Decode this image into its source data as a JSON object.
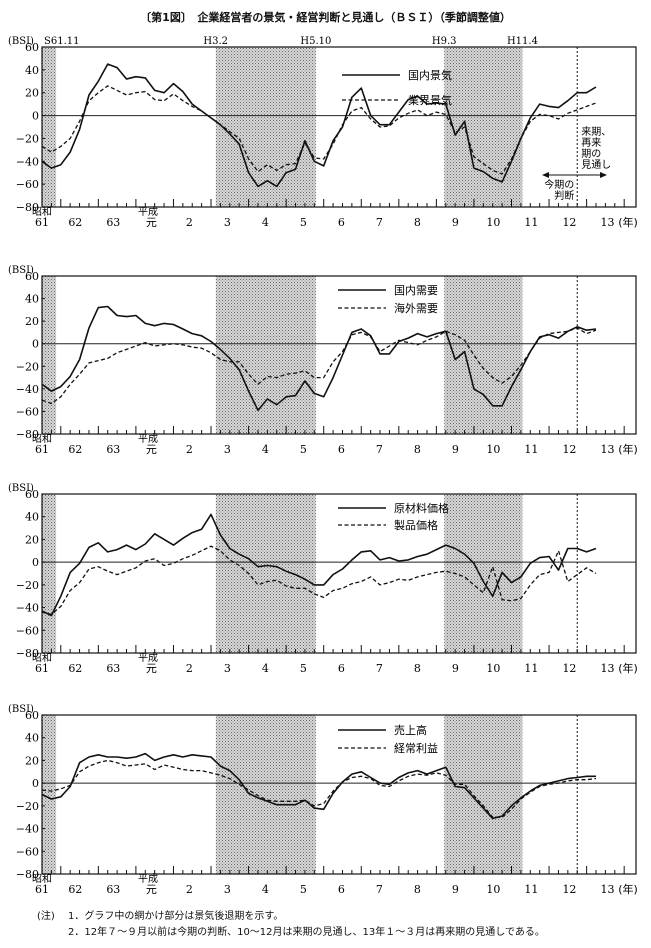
{
  "figure": {
    "title": "〔第1図〕　企業経営者の景気・経営判断と見通し（ＢＳＩ）（季節調整値）",
    "recessions": [
      {
        "from": null,
        "to": "S61.11"
      },
      {
        "from": "H3.2",
        "to": "H5.10"
      },
      {
        "from": "H9.3",
        "to": "H11.4"
      }
    ],
    "recession_labels": [
      "S61.11",
      "H3.2",
      "H5.10",
      "H9.3",
      "H11.4"
    ],
    "forecast_divider_at": "H12Q3",
    "annotations": {
      "outlook": [
        "来期、",
        "再来",
        "期の",
        "見通し"
      ],
      "current": [
        "今期の",
        "判断"
      ]
    },
    "notes": {
      "prefix": "(注)",
      "items": [
        "1．グラフ中の網かけ部分は景気後退期を示す。",
        "2．12年７～９月以前は今期の判断、10～12月は来期の見通し、13年１～３月は再来期の見通しである。"
      ]
    },
    "colors": {
      "line": "#111111",
      "shade": "#bdbdbd"
    }
  },
  "chart_data": [
    {
      "type": "line",
      "ylabel": "(BSI)",
      "ylim": [
        -80,
        60
      ],
      "yticks": [
        "60",
        "40",
        "20",
        "0",
        "−20",
        "−40",
        "−60",
        "−80"
      ],
      "era_labels": [
        "昭和",
        "平成"
      ],
      "xtick_labels": [
        "61",
        "62",
        "63",
        "元",
        "2",
        "3",
        "4",
        "5",
        "6",
        "7",
        "8",
        "9",
        "10",
        "11",
        "12",
        "13"
      ],
      "xunit": "(年)",
      "x": [
        "S61Q2",
        "S61Q3",
        "S61Q4",
        "S62Q1",
        "S62Q2",
        "S62Q3",
        "S62Q4",
        "S63Q1",
        "S63Q2",
        "S63Q3",
        "S63Q4",
        "H1Q1",
        "H1Q2",
        "H1Q3",
        "H1Q4",
        "H2Q1",
        "H2Q2",
        "H2Q3",
        "H2Q4",
        "H3Q1",
        "H3Q2",
        "H3Q3",
        "H3Q4",
        "H4Q1",
        "H4Q2",
        "H4Q3",
        "H4Q4",
        "H5Q1",
        "H5Q2",
        "H5Q3",
        "H5Q4",
        "H6Q1",
        "H6Q2",
        "H6Q3",
        "H6Q4",
        "H7Q1",
        "H7Q2",
        "H7Q3",
        "H7Q4",
        "H8Q1",
        "H8Q2",
        "H8Q3",
        "H8Q4",
        "H9Q1",
        "H9Q2",
        "H9Q3",
        "H9Q4",
        "H10Q1",
        "H10Q2",
        "H10Q3",
        "H10Q4",
        "H11Q1",
        "H11Q2",
        "H11Q3",
        "H11Q4",
        "H12Q1",
        "H12Q2",
        "H12Q3",
        "H12Q4",
        "H13Q1"
      ],
      "series": [
        {
          "name": "国内景気",
          "style": "solid",
          "values": [
            -40,
            -46,
            -43,
            -32,
            -12,
            18,
            30,
            45,
            42,
            32,
            34,
            33,
            22,
            20,
            28,
            21,
            10,
            4,
            -2,
            -8,
            -16,
            -25,
            -50,
            -62,
            -57,
            -62,
            -50,
            -47,
            -22,
            -40,
            -44,
            -22,
            -10,
            16,
            24,
            0,
            -8,
            -8,
            3,
            14,
            17,
            10,
            11,
            10,
            -17,
            -5,
            -46,
            -49,
            -55,
            -58,
            -40,
            -20,
            -2,
            10,
            8,
            7,
            13,
            20,
            20,
            25
          ]
        },
        {
          "name": "業界景気",
          "style": "dashed",
          "values": [
            -27,
            -32,
            -27,
            -20,
            -5,
            13,
            20,
            26,
            22,
            18,
            20,
            21,
            14,
            13,
            19,
            13,
            8,
            4,
            -2,
            -8,
            -14,
            -20,
            -38,
            -49,
            -43,
            -48,
            -43,
            -42,
            -24,
            -37,
            -38,
            -25,
            -8,
            4,
            7,
            -3,
            -10,
            -9,
            -2,
            2,
            5,
            0,
            3,
            1,
            -15,
            -10,
            -36,
            -42,
            -48,
            -51,
            -38,
            -20,
            -5,
            1,
            0,
            -3,
            2,
            5,
            8,
            11
          ]
        }
      ]
    },
    {
      "type": "line",
      "ylabel": "(BSI)",
      "ylim": [
        -80,
        60
      ],
      "yticks": [
        "60",
        "40",
        "20",
        "0",
        "−20",
        "−40",
        "−60",
        "−80"
      ],
      "era_labels": [
        "昭和",
        "平成"
      ],
      "xtick_labels": [
        "61",
        "62",
        "63",
        "元",
        "2",
        "3",
        "4",
        "5",
        "6",
        "7",
        "8",
        "9",
        "10",
        "11",
        "12",
        "13"
      ],
      "xunit": "(年)",
      "x": [
        "S61Q2",
        "S61Q3",
        "S61Q4",
        "S62Q1",
        "S62Q2",
        "S62Q3",
        "S62Q4",
        "S63Q1",
        "S63Q2",
        "S63Q3",
        "S63Q4",
        "H1Q1",
        "H1Q2",
        "H1Q3",
        "H1Q4",
        "H2Q1",
        "H2Q2",
        "H2Q3",
        "H2Q4",
        "H3Q1",
        "H3Q2",
        "H3Q3",
        "H3Q4",
        "H4Q1",
        "H4Q2",
        "H4Q3",
        "H4Q4",
        "H5Q1",
        "H5Q2",
        "H5Q3",
        "H5Q4",
        "H6Q1",
        "H6Q2",
        "H6Q3",
        "H6Q4",
        "H7Q1",
        "H7Q2",
        "H7Q3",
        "H7Q4",
        "H8Q1",
        "H8Q2",
        "H8Q3",
        "H8Q4",
        "H9Q1",
        "H9Q2",
        "H9Q3",
        "H9Q4",
        "H10Q1",
        "H10Q2",
        "H10Q3",
        "H10Q4",
        "H11Q1",
        "H11Q2",
        "H11Q3",
        "H11Q4",
        "H12Q1",
        "H12Q2",
        "H12Q3",
        "H12Q4",
        "H13Q1"
      ],
      "series": [
        {
          "name": "国内需要",
          "style": "solid",
          "values": [
            -36,
            -42,
            -38,
            -29,
            -14,
            14,
            32,
            33,
            25,
            24,
            25,
            18,
            16,
            18,
            17,
            13,
            9,
            7,
            2,
            -5,
            -13,
            -23,
            -42,
            -59,
            -49,
            -54,
            -47,
            -46,
            -33,
            -44,
            -47,
            -30,
            -10,
            10,
            13,
            7,
            -9,
            -9,
            2,
            5,
            9,
            6,
            9,
            11,
            -14,
            -7,
            -40,
            -45,
            -55,
            -55,
            -38,
            -23,
            -7,
            6,
            8,
            5,
            11,
            15,
            12,
            13
          ]
        },
        {
          "name": "海外需要",
          "style": "dashed",
          "values": [
            -50,
            -53,
            -47,
            -36,
            -27,
            -17,
            -15,
            -13,
            -8,
            -5,
            -2,
            1,
            -2,
            -1,
            0,
            -1,
            -3,
            -4,
            -8,
            -14,
            -16,
            -16,
            -27,
            -36,
            -29,
            -30,
            -27,
            -26,
            -24,
            -30,
            -30,
            -16,
            -7,
            8,
            10,
            6,
            -7,
            -2,
            3,
            1,
            -1,
            3,
            6,
            11,
            8,
            3,
            -10,
            -22,
            -30,
            -35,
            -29,
            -19,
            -7,
            5,
            9,
            10,
            11,
            14,
            9,
            12
          ]
        }
      ]
    },
    {
      "type": "line",
      "ylabel": "(BSI)",
      "ylim": [
        -80,
        60
      ],
      "yticks": [
        "60",
        "40",
        "20",
        "0",
        "−20",
        "−40",
        "−60",
        "−80"
      ],
      "era_labels": [
        "昭和",
        "平成"
      ],
      "xtick_labels": [
        "61",
        "62",
        "63",
        "元",
        "2",
        "3",
        "4",
        "5",
        "6",
        "7",
        "8",
        "9",
        "10",
        "11",
        "12",
        "13"
      ],
      "xunit": "(年)",
      "x": [
        "S61Q2",
        "S61Q3",
        "S61Q4",
        "S62Q1",
        "S62Q2",
        "S62Q3",
        "S62Q4",
        "S63Q1",
        "S63Q2",
        "S63Q3",
        "S63Q4",
        "H1Q1",
        "H1Q2",
        "H1Q3",
        "H1Q4",
        "H2Q1",
        "H2Q2",
        "H2Q3",
        "H2Q4",
        "H3Q1",
        "H3Q2",
        "H3Q3",
        "H3Q4",
        "H4Q1",
        "H4Q2",
        "H4Q3",
        "H4Q4",
        "H5Q1",
        "H5Q2",
        "H5Q3",
        "H5Q4",
        "H6Q1",
        "H6Q2",
        "H6Q3",
        "H6Q4",
        "H7Q1",
        "H7Q2",
        "H7Q3",
        "H7Q4",
        "H8Q1",
        "H8Q2",
        "H8Q3",
        "H8Q4",
        "H9Q1",
        "H9Q2",
        "H9Q3",
        "H9Q4",
        "H10Q1",
        "H10Q2",
        "H10Q3",
        "H10Q4",
        "H11Q1",
        "H11Q2",
        "H11Q3",
        "H11Q4",
        "H12Q1",
        "H12Q2",
        "H12Q3",
        "H12Q4",
        "H13Q1"
      ],
      "series": [
        {
          "name": "原材料価格",
          "style": "solid",
          "values": [
            -43,
            -47,
            -30,
            -9,
            -1,
            13,
            17,
            9,
            11,
            15,
            11,
            16,
            25,
            20,
            15,
            21,
            26,
            29,
            42,
            24,
            12,
            7,
            3,
            -4,
            -3,
            -4,
            -8,
            -11,
            -15,
            -20,
            -20,
            -11,
            -6,
            2,
            9,
            10,
            2,
            4,
            1,
            2,
            5,
            7,
            11,
            15,
            12,
            7,
            -1,
            -17,
            -30,
            -9,
            -18,
            -13,
            -1,
            4,
            5,
            -7,
            12,
            12,
            9,
            12
          ]
        },
        {
          "name": "製品価格",
          "style": "dashed",
          "values": [
            -44,
            -46,
            -39,
            -25,
            -18,
            -6,
            -4,
            -8,
            -11,
            -8,
            -5,
            1,
            3,
            -3,
            -1,
            3,
            6,
            10,
            14,
            10,
            2,
            -3,
            -10,
            -20,
            -17,
            -16,
            -21,
            -23,
            -23,
            -28,
            -31,
            -25,
            -23,
            -19,
            -17,
            -13,
            -20,
            -18,
            -15,
            -16,
            -13,
            -11,
            -9,
            -8,
            -10,
            -13,
            -20,
            -27,
            -4,
            -33,
            -34,
            -32,
            -20,
            -11,
            -9,
            10,
            -17,
            -11,
            -5,
            -10
          ]
        }
      ]
    },
    {
      "type": "line",
      "ylabel": "(BSI)",
      "ylim": [
        -80,
        60
      ],
      "yticks": [
        "60",
        "40",
        "20",
        "0",
        "−20",
        "−40",
        "−60",
        "−80"
      ],
      "era_labels": [
        "昭和",
        "平成"
      ],
      "xtick_labels": [
        "61",
        "62",
        "63",
        "元",
        "2",
        "3",
        "4",
        "5",
        "6",
        "7",
        "8",
        "9",
        "10",
        "11",
        "12",
        "13"
      ],
      "xunit": "(年)",
      "x": [
        "S61Q2",
        "S61Q3",
        "S61Q4",
        "S62Q1",
        "S62Q2",
        "S62Q3",
        "S62Q4",
        "S63Q1",
        "S63Q2",
        "S63Q3",
        "S63Q4",
        "H1Q1",
        "H1Q2",
        "H1Q3",
        "H1Q4",
        "H2Q1",
        "H2Q2",
        "H2Q3",
        "H2Q4",
        "H3Q1",
        "H3Q2",
        "H3Q3",
        "H3Q4",
        "H4Q1",
        "H4Q2",
        "H4Q3",
        "H4Q4",
        "H5Q1",
        "H5Q2",
        "H5Q3",
        "H5Q4",
        "H6Q1",
        "H6Q2",
        "H6Q3",
        "H6Q4",
        "H7Q1",
        "H7Q2",
        "H7Q3",
        "H7Q4",
        "H8Q1",
        "H8Q2",
        "H8Q3",
        "H8Q4",
        "H9Q1",
        "H9Q2",
        "H9Q3",
        "H9Q4",
        "H10Q1",
        "H10Q2",
        "H10Q3",
        "H10Q4",
        "H11Q1",
        "H11Q2",
        "H11Q3",
        "H11Q4",
        "H12Q1",
        "H12Q2",
        "H12Q3",
        "H12Q4",
        "H13Q1"
      ],
      "series": [
        {
          "name": "売上高",
          "style": "solid",
          "values": [
            -10,
            -14,
            -12,
            -3,
            18,
            23,
            25,
            23,
            23,
            22,
            23,
            26,
            20,
            23,
            25,
            23,
            25,
            24,
            23,
            15,
            11,
            3,
            -9,
            -13,
            -16,
            -19,
            -19,
            -19,
            -15,
            -22,
            -23,
            -9,
            1,
            8,
            10,
            5,
            0,
            -1,
            5,
            9,
            11,
            8,
            11,
            14,
            -3,
            -4,
            -13,
            -22,
            -31,
            -29,
            -20,
            -13,
            -7,
            -2,
            0,
            2,
            4,
            5,
            6,
            6
          ]
        },
        {
          "name": "経常利益",
          "style": "dashed",
          "values": [
            -6,
            -7,
            -5,
            -2,
            10,
            15,
            18,
            20,
            18,
            15,
            16,
            17,
            12,
            16,
            14,
            12,
            11,
            11,
            9,
            7,
            4,
            -1,
            -6,
            -11,
            -15,
            -16,
            -16,
            -16,
            -15,
            -20,
            -18,
            -7,
            1,
            5,
            6,
            4,
            -2,
            -3,
            2,
            6,
            8,
            7,
            9,
            7,
            -1,
            -1,
            -11,
            -20,
            -30,
            -30,
            -23,
            -14,
            -8,
            -3,
            -1,
            0,
            2,
            3,
            3,
            4
          ]
        }
      ]
    }
  ]
}
